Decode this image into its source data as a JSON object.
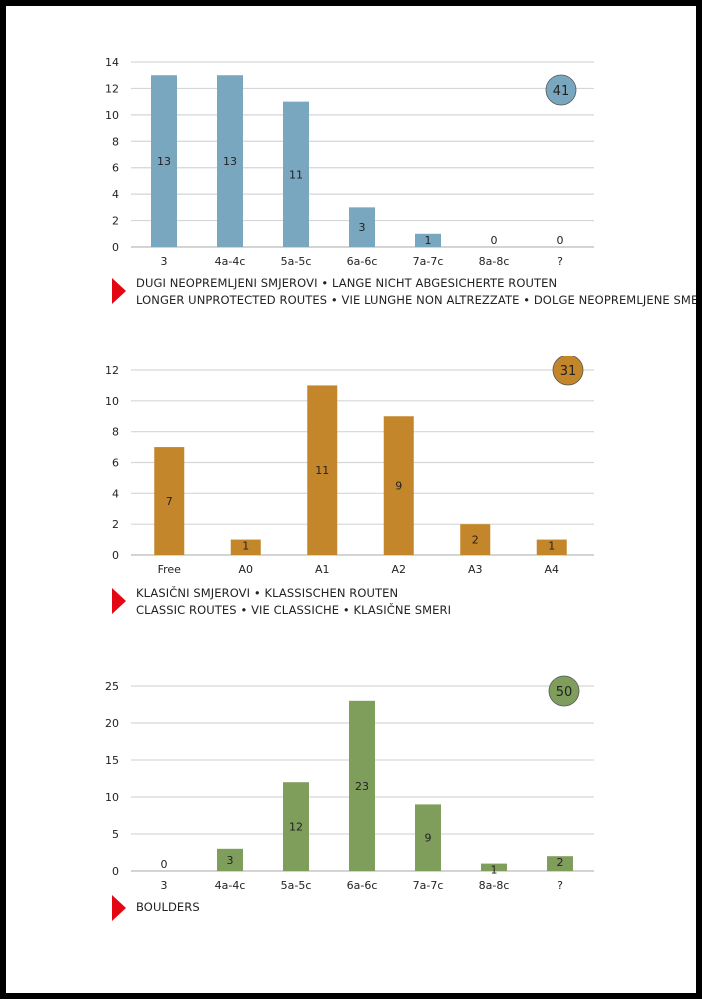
{
  "chart_data": [
    {
      "type": "bar",
      "categories": [
        "3",
        "4a-4c",
        "5a-5c",
        "6a-6c",
        "7a-7c",
        "8a-8c",
        "?"
      ],
      "values": [
        13,
        13,
        11,
        3,
        1,
        0,
        0
      ],
      "ylim": [
        0,
        14
      ],
      "yticks": [
        0,
        2,
        4,
        6,
        8,
        10,
        12,
        14
      ],
      "grid": true,
      "color": "#7aa7c0",
      "badge_total": "41",
      "caption": [
        "DUGI NEOPREMLJENI SMJEROVI • LANGE NICHT ABGESICHERTE ROUTEN",
        "LONGER UNPROTECTED ROUTES • VIE LUNGHE NON ALTREZZATE • DOLGE NEOPREMLJENE SMERI"
      ]
    },
    {
      "type": "bar",
      "categories": [
        "Free",
        "A0",
        "A1",
        "A2",
        "A3",
        "A4"
      ],
      "values": [
        7,
        1,
        11,
        9,
        2,
        1
      ],
      "ylim": [
        0,
        12
      ],
      "yticks": [
        0,
        2,
        4,
        6,
        8,
        10,
        12
      ],
      "grid": true,
      "color": "#c3862a",
      "badge_total": "31",
      "caption": [
        "KLASIČNI SMJEROVI • KLASSISCHEN ROUTEN",
        "CLASSIC ROUTES • VIE CLASSICHE • KLASIČNE SMERI"
      ]
    },
    {
      "type": "bar",
      "categories": [
        "3",
        "4a-4c",
        "5a-5c",
        "6a-6c",
        "7a-7c",
        "8a-8c",
        "?"
      ],
      "values": [
        0,
        3,
        12,
        23,
        9,
        1,
        2
      ],
      "ylim": [
        0,
        25
      ],
      "yticks": [
        0,
        5,
        10,
        15,
        20,
        25
      ],
      "grid": true,
      "color": "#7f9e5c",
      "badge_total": "50",
      "caption": [
        "BOULDERS"
      ]
    }
  ]
}
